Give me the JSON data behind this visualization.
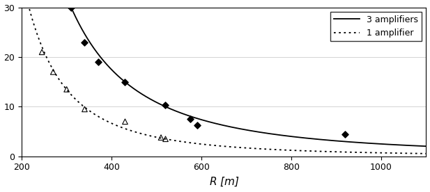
{
  "title": "",
  "xlabel": "$R$ [m]",
  "ylabel": "",
  "xlim": [
    200,
    1100
  ],
  "ylim": [
    0,
    30
  ],
  "yticks": [
    0,
    10,
    20,
    30
  ],
  "xticks": [
    200,
    400,
    600,
    800,
    1000
  ],
  "curve3_label": "3 amplifiers",
  "curve3_color": "black",
  "curve3_linestyle": "solid",
  "curve3_A": 280000,
  "curve3_B": 0.0195,
  "curve1_label": "1 amplifier",
  "curve1_color": "black",
  "curve1_linestyle": "dotted",
  "curve1_A": 3500,
  "curve1_B": 0.0115,
  "diamond_x": [
    310,
    340,
    370,
    430,
    520,
    575,
    590,
    920
  ],
  "diamond_y": [
    30,
    23,
    19,
    15,
    10.3,
    7.5,
    6.2,
    4.5
  ],
  "triangle_x": [
    245,
    270,
    300,
    340,
    430,
    510,
    520
  ],
  "triangle_y": [
    21,
    17,
    13.5,
    9.5,
    7.0,
    3.8,
    3.5
  ],
  "figsize": [
    6.17,
    2.76
  ],
  "dpi": 100
}
